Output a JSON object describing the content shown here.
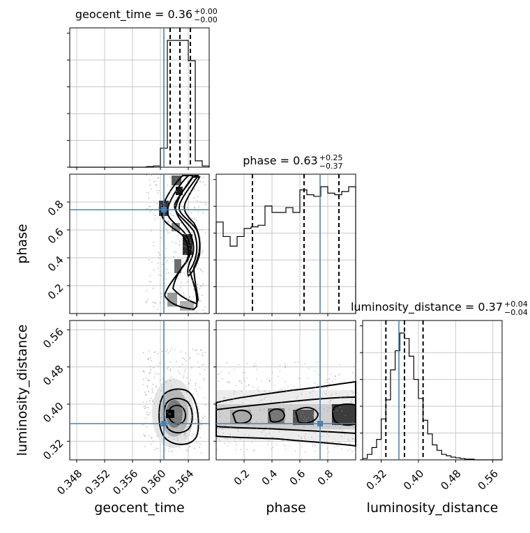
{
  "chart_data": {
    "type": "corner",
    "parameters": [
      {
        "key": "geocent_time",
        "label": "geocent_time",
        "range": [
          0.347,
          0.367
        ],
        "ticks": [
          "0.348",
          "0.352",
          "0.356",
          "0.360",
          "0.364"
        ],
        "tick_values": [
          0.348,
          0.352,
          0.356,
          0.36,
          0.364
        ],
        "truth": 0.3605,
        "title": {
          "text": "geocent_time = 0.36",
          "sup": "+0.00",
          "sub": "−0.00"
        },
        "quantiles": [
          0.3614,
          0.3628,
          0.3643
        ],
        "histogram": {
          "edges": [
            0.347,
            0.348,
            0.349,
            0.35,
            0.351,
            0.352,
            0.353,
            0.354,
            0.355,
            0.356,
            0.357,
            0.358,
            0.359,
            0.36,
            0.361,
            0.362,
            0.363,
            0.364,
            0.365,
            0.366,
            0.367
          ],
          "counts": [
            0,
            0,
            0,
            0,
            0,
            0,
            0,
            0,
            0,
            0,
            0,
            1,
            2,
            30,
            200,
            200,
            200,
            168,
            10,
            2
          ]
        }
      },
      {
        "key": "phase",
        "label": "phase",
        "range": [
          0.0,
          1.0
        ],
        "ticks": [
          "0.2",
          "0.4",
          "0.6",
          "0.8"
        ],
        "tick_values": [
          0.2,
          0.4,
          0.6,
          0.8
        ],
        "truth": 0.745,
        "title": {
          "text": "phase = 0.63",
          "sup": "+0.25",
          "sub": "−0.37"
        },
        "quantiles": [
          0.26,
          0.63,
          0.88
        ],
        "histogram": {
          "edges": [
            0.0,
            0.05,
            0.1,
            0.15,
            0.2,
            0.25,
            0.3,
            0.35,
            0.4,
            0.45,
            0.5,
            0.55,
            0.6,
            0.65,
            0.7,
            0.75,
            0.8,
            0.85,
            0.9,
            0.95,
            1.0
          ],
          "counts": [
            57,
            48,
            42,
            48,
            53,
            54,
            55,
            67,
            63,
            63,
            66,
            63,
            77,
            74,
            73,
            79,
            75,
            74,
            76,
            79
          ]
        }
      },
      {
        "key": "luminosity_distance",
        "label": "luminosity_distance",
        "range": [
          0.28,
          0.58
        ],
        "ticks": [
          "0.32",
          "0.40",
          "0.48",
          "0.56"
        ],
        "tick_values": [
          0.32,
          0.4,
          0.48,
          0.56
        ],
        "truth": 0.358,
        "title": {
          "text": "luminosity_distance = 0.37",
          "sup": "+0.04",
          "sub": "−0.04"
        },
        "quantiles": [
          0.33,
          0.37,
          0.41
        ],
        "histogram": {
          "edges": [
            0.28,
            0.29,
            0.3,
            0.31,
            0.32,
            0.33,
            0.34,
            0.35,
            0.36,
            0.37,
            0.38,
            0.39,
            0.4,
            0.41,
            0.42,
            0.43,
            0.44,
            0.45,
            0.46,
            0.47,
            0.48,
            0.49,
            0.5,
            0.51,
            0.52,
            0.53,
            0.54,
            0.55,
            0.56,
            0.57,
            0.58
          ],
          "counts": [
            2,
            8,
            18,
            30,
            60,
            88,
            132,
            160,
            186,
            178,
            152,
            118,
            90,
            58,
            38,
            22,
            14,
            8,
            6,
            4,
            3,
            2,
            1,
            1,
            0,
            0,
            0,
            0,
            0,
            0
          ]
        }
      }
    ],
    "truth_color": "#4682b4",
    "grid": true
  }
}
